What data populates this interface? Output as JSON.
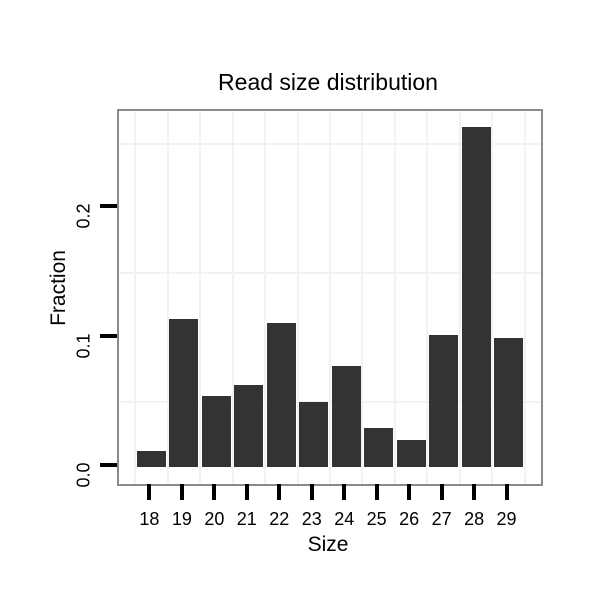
{
  "chart_data": {
    "type": "bar",
    "title": "Read size distribution",
    "xlabel": "Size",
    "ylabel": "Fraction",
    "categories": [
      "18",
      "19",
      "20",
      "21",
      "22",
      "23",
      "24",
      "25",
      "26",
      "27",
      "28",
      "29"
    ],
    "values": [
      0.012,
      0.114,
      0.055,
      0.063,
      0.111,
      0.05,
      0.078,
      0.03,
      0.021,
      0.102,
      0.263,
      0.1
    ],
    "ylim": [
      0,
      0.275
    ],
    "y_ticks": [
      {
        "label": "0.0",
        "value": 0.0
      },
      {
        "label": "0.1",
        "value": 0.1
      },
      {
        "label": "0.2",
        "value": 0.2
      }
    ],
    "y_minor_gridlines": [
      0.05,
      0.15,
      0.25
    ],
    "grid": "minor-only",
    "legend": "none",
    "colors": {
      "bar_fill": "#333333",
      "panel_border": "#8a8a8a",
      "minor_grid": "#f2f2f2",
      "tick": "#000000",
      "text": "#000000",
      "background": "#ffffff"
    }
  }
}
